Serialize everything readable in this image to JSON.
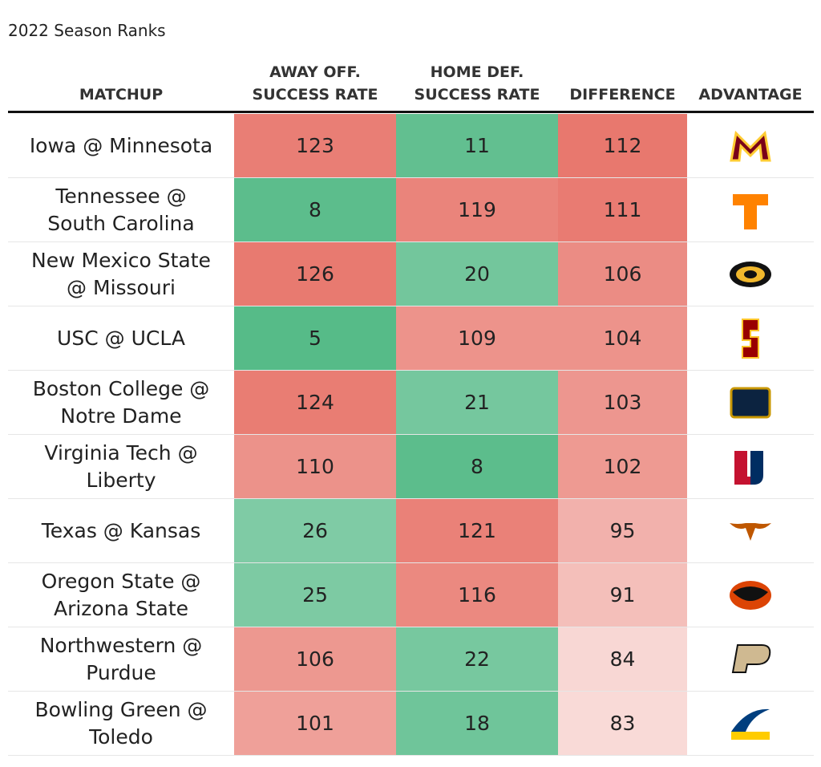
{
  "title": "2022 Season Ranks",
  "table": {
    "headers": [
      [
        "MATCHUP"
      ],
      [
        "AWAY OFF.",
        "SUCCESS RATE"
      ],
      [
        "HOME DEF.",
        "SUCCESS RATE"
      ],
      [
        "DIFFERENCE"
      ],
      [
        "ADVANTAGE"
      ]
    ],
    "rows": [
      {
        "matchup": [
          "Iowa @ Minnesota"
        ],
        "away": 123,
        "home": 11,
        "difference": 112
      },
      {
        "matchup": [
          "Tennessee @",
          "South Carolina"
        ],
        "away": 8,
        "home": 119,
        "difference": 111
      },
      {
        "matchup": [
          "New Mexico State",
          "@ Missouri"
        ],
        "away": 126,
        "home": 20,
        "difference": 106
      },
      {
        "matchup": [
          "USC @ UCLA"
        ],
        "away": 5,
        "home": 109,
        "difference": 104
      },
      {
        "matchup": [
          "Boston College @",
          "Notre Dame"
        ],
        "away": 124,
        "home": 21,
        "difference": 103
      },
      {
        "matchup": [
          "Virginia Tech @",
          "Liberty"
        ],
        "away": 110,
        "home": 8,
        "difference": 102
      },
      {
        "matchup": [
          "Texas @ Kansas"
        ],
        "away": 26,
        "home": 121,
        "difference": 95
      },
      {
        "matchup": [
          "Oregon State @",
          "Arizona State"
        ],
        "away": 25,
        "home": 116,
        "difference": 91
      },
      {
        "matchup": [
          "Northwestern @",
          "Purdue"
        ],
        "away": 106,
        "home": 22,
        "difference": 84
      },
      {
        "matchup": [
          "Bowling Green @",
          "Toledo"
        ],
        "away": 101,
        "home": 18,
        "difference": 83
      }
    ]
  }
}
